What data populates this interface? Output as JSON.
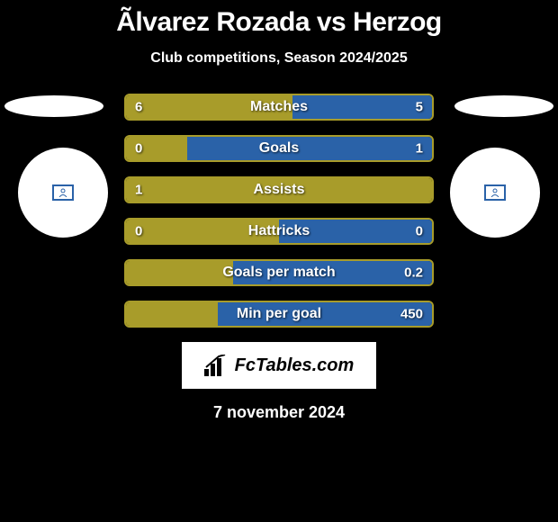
{
  "title": "Ãlvarez Rozada vs Herzog",
  "subtitle": "Club competitions, Season 2024/2025",
  "date": "7 november 2024",
  "logo_text": "FcTables.com",
  "colors": {
    "left": "#a89c2a",
    "right": "#2a62a8",
    "bar_border": "#a89c2a",
    "background": "#000000",
    "text": "#ffffff",
    "avatar_left": "#2a62a8",
    "avatar_right": "#2a62a8"
  },
  "stats": [
    {
      "label": "Matches",
      "left_val": "6",
      "right_val": "5",
      "left_pct": 54.5,
      "right_pct": 45.5
    },
    {
      "label": "Goals",
      "left_val": "0",
      "right_val": "1",
      "left_pct": 20,
      "right_pct": 80
    },
    {
      "label": "Assists",
      "left_val": "1",
      "right_val": "",
      "left_pct": 100,
      "right_pct": 0
    },
    {
      "label": "Hattricks",
      "left_val": "0",
      "right_val": "0",
      "left_pct": 50,
      "right_pct": 50
    },
    {
      "label": "Goals per match",
      "left_val": "",
      "right_val": "0.2",
      "left_pct": 35,
      "right_pct": 65
    },
    {
      "label": "Min per goal",
      "left_val": "",
      "right_val": "450",
      "left_pct": 30,
      "right_pct": 70
    }
  ]
}
